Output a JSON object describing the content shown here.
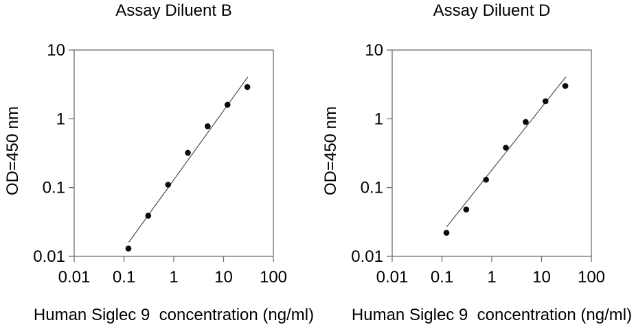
{
  "colors": {
    "background": "#ffffff",
    "text": "#000000",
    "axis": "#6e6e6e",
    "fit_line": "#4f4f4f",
    "marker": "#0a0a0a"
  },
  "chart_data": [
    {
      "type": "scatter",
      "title": "Assay Diluent B",
      "xlabel": "Human Siglec 9  concentration (ng/ml)",
      "ylabel": "OD=450 nm",
      "xscale": "log",
      "yscale": "log",
      "xlim": [
        0.01,
        100
      ],
      "ylim": [
        0.01,
        10
      ],
      "x_ticks": [
        "0.01",
        "0.1",
        "1",
        "10",
        "100"
      ],
      "y_ticks": [
        "0.01",
        "0.1",
        "1",
        "10"
      ],
      "grid": false,
      "legend": false,
      "x": [
        0.123,
        0.307,
        0.768,
        1.92,
        4.8,
        12,
        30
      ],
      "y": [
        0.013,
        0.039,
        0.11,
        0.32,
        0.78,
        1.6,
        2.9
      ],
      "fit_line": {
        "x1": 0.125,
        "y1": 0.016,
        "x2": 31,
        "y2": 4.1
      }
    },
    {
      "type": "scatter",
      "title": "Assay Diluent D",
      "xlabel": "Human Siglec 9  concentration (ng/ml)",
      "ylabel": "OD=450 nm",
      "xscale": "log",
      "yscale": "log",
      "xlim": [
        0.01,
        100
      ],
      "ylim": [
        0.01,
        10
      ],
      "x_ticks": [
        "0.01",
        "0.1",
        "1",
        "10",
        "100"
      ],
      "y_ticks": [
        "0.01",
        "0.1",
        "1",
        "10"
      ],
      "grid": false,
      "legend": false,
      "x": [
        0.123,
        0.307,
        0.768,
        1.92,
        4.8,
        12,
        30
      ],
      "y": [
        0.022,
        0.048,
        0.13,
        0.38,
        0.9,
        1.8,
        3.0
      ],
      "fit_line": {
        "x1": 0.125,
        "y1": 0.027,
        "x2": 31,
        "y2": 4.1
      }
    }
  ]
}
